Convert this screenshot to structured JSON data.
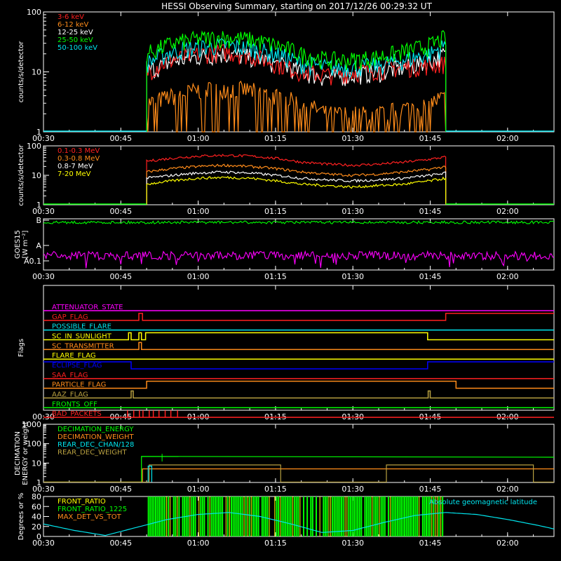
{
  "title": "HESSI Observing Summary, starting on 2017/12/26 00:29:32 UT",
  "time_ticks": [
    "00:30",
    "00:45",
    "01:00",
    "01:15",
    "01:30",
    "01:45",
    "02:00"
  ],
  "colors": {
    "red": "#ff2020",
    "orange": "#ff8c1a",
    "white": "#ffffff",
    "yellow": "#ffff00",
    "green": "#00ff00",
    "cyan": "#00e5ee",
    "magenta": "#ff00ff",
    "blue": "#0000ff",
    "olive": "#b8a040",
    "axis": "#ffffff"
  },
  "chart_data": [
    {
      "id": "low_energy_rates",
      "type": "line",
      "ylabel": "counts/s/detector",
      "yscale": "log",
      "ylim": [
        1,
        100
      ],
      "yticks": [
        "1",
        "10",
        "100"
      ],
      "xlim": [
        "00:30",
        "02:09"
      ],
      "data_window": [
        "00:50",
        "01:48"
      ],
      "series": [
        {
          "name": "3-6 keV",
          "color": "red",
          "x": [
            "00:50",
            "00:55",
            "01:00",
            "01:05",
            "01:10",
            "01:15",
            "01:20",
            "01:25",
            "01:30",
            "01:35",
            "01:40",
            "01:45",
            "01:48"
          ],
          "y": [
            10,
            16,
            20,
            22,
            19,
            14,
            10,
            9,
            10,
            11,
            12,
            13,
            14
          ]
        },
        {
          "name": "6-12 keV",
          "color": "orange",
          "x": [
            "00:50",
            "00:55",
            "01:00",
            "01:05",
            "01:10",
            "01:15",
            "01:20",
            "01:25",
            "01:30",
            "01:35",
            "01:40",
            "01:45",
            "01:48"
          ],
          "y": [
            3,
            4,
            5,
            5.5,
            5,
            4,
            3,
            2,
            2,
            2,
            2.5,
            3,
            4
          ]
        },
        {
          "name": "12-25 keV",
          "color": "white",
          "x": [
            "00:50",
            "00:55",
            "01:00",
            "01:05",
            "01:10",
            "01:15",
            "01:20",
            "01:25",
            "01:30",
            "01:35",
            "01:40",
            "01:45",
            "01:48"
          ],
          "y": [
            10,
            15,
            18,
            20,
            18,
            14,
            10,
            8,
            9,
            10,
            12,
            15,
            20
          ]
        },
        {
          "name": "25-50 keV",
          "color": "green",
          "x": [
            "00:50",
            "00:55",
            "01:00",
            "01:05",
            "01:10",
            "01:15",
            "01:20",
            "01:25",
            "01:30",
            "01:35",
            "01:40",
            "01:45",
            "01:48"
          ],
          "y": [
            20,
            30,
            36,
            38,
            35,
            28,
            20,
            16,
            16,
            18,
            22,
            28,
            38
          ]
        },
        {
          "name": "50-100 keV",
          "color": "cyan",
          "x": [
            "00:50",
            "00:55",
            "01:00",
            "01:05",
            "01:10",
            "01:15",
            "01:20",
            "01:25",
            "01:30",
            "01:35",
            "01:40",
            "01:45",
            "01:48"
          ],
          "y": [
            14,
            22,
            26,
            28,
            25,
            20,
            14,
            12,
            12,
            13,
            16,
            20,
            28
          ]
        }
      ]
    },
    {
      "id": "high_energy_rates",
      "type": "line",
      "ylabel": "counts/s/detector",
      "yscale": "log",
      "ylim": [
        1,
        100
      ],
      "yticks": [
        "1",
        "10",
        "100"
      ],
      "xlim": [
        "00:30",
        "02:09"
      ],
      "data_window": [
        "00:50",
        "01:48"
      ],
      "series": [
        {
          "name": "0.1-0.3 MeV",
          "color": "red",
          "x": [
            "00:50",
            "00:55",
            "01:00",
            "01:05",
            "01:10",
            "01:15",
            "01:20",
            "01:25",
            "01:30",
            "01:35",
            "01:40",
            "01:45",
            "01:48"
          ],
          "y": [
            30,
            38,
            45,
            48,
            45,
            38,
            28,
            24,
            22,
            24,
            28,
            35,
            42
          ]
        },
        {
          "name": "0.3-0.8 MeV",
          "color": "orange",
          "x": [
            "00:50",
            "00:55",
            "01:00",
            "01:05",
            "01:10",
            "01:15",
            "01:20",
            "01:25",
            "01:30",
            "01:35",
            "01:40",
            "01:45",
            "01:48"
          ],
          "y": [
            13,
            17,
            20,
            22,
            20,
            17,
            13,
            11,
            10,
            11,
            13,
            16,
            20
          ]
        },
        {
          "name": "0.8-7 MeV",
          "color": "white",
          "x": [
            "00:50",
            "00:55",
            "01:00",
            "01:05",
            "01:10",
            "01:15",
            "01:20",
            "01:25",
            "01:30",
            "01:35",
            "01:40",
            "01:45",
            "01:48"
          ],
          "y": [
            8,
            10,
            12,
            13,
            12,
            10,
            8,
            7,
            6.5,
            7,
            8,
            10,
            12
          ]
        },
        {
          "name": "7-20 MeV",
          "color": "yellow",
          "x": [
            "00:50",
            "00:55",
            "01:00",
            "01:05",
            "01:10",
            "01:15",
            "01:20",
            "01:25",
            "01:30",
            "01:35",
            "01:40",
            "01:45",
            "01:48"
          ],
          "y": [
            5,
            6.5,
            8,
            8.5,
            8,
            6.5,
            5,
            4.5,
            4,
            4.5,
            5,
            6.5,
            8
          ]
        }
      ]
    },
    {
      "id": "goes15",
      "type": "line",
      "ylabel": "GOES15",
      "ylabel2": "[W m⁻²]",
      "yticks": [
        "A0.1",
        "A",
        "B"
      ],
      "xlim": [
        "00:30",
        "02:09"
      ],
      "series": [
        {
          "color": "green",
          "level": 0.93
        },
        {
          "color": "magenta",
          "level": 0.28
        }
      ]
    },
    {
      "id": "flags",
      "type": "line",
      "ylabel": "Flags",
      "xlim": [
        "00:30",
        "02:09"
      ],
      "series": [
        {
          "name": "ATTENUATOR_STATE",
          "color": "magenta",
          "segments": [
            [
              "00:30",
              0,
              "02:09"
            ]
          ]
        },
        {
          "name": "GAP_FLAG",
          "color": "red",
          "segments": [
            [
              "00:30",
              0,
              "00:48.5"
            ],
            [
              "00:48.5",
              1,
              "00:49.2"
            ],
            [
              "00:49.2",
              0,
              "01:48"
            ],
            [
              "01:48",
              1,
              "02:09"
            ]
          ]
        },
        {
          "name": "POSSIBLE_FLARE",
          "color": "cyan",
          "segments": [
            [
              "00:30",
              0,
              "02:09"
            ]
          ]
        },
        {
          "name": "SC_IN_SUNLIGHT",
          "color": "yellow",
          "segments": [
            [
              "00:30",
              0,
              "00:46.5"
            ],
            [
              "00:46.5",
              1,
              "00:47"
            ],
            [
              "00:47",
              0,
              "00:48.5"
            ],
            [
              "00:48.5",
              1,
              "00:49"
            ],
            [
              "00:49",
              0,
              "00:49.8"
            ],
            [
              "00:49.8",
              1,
              "01:44.5"
            ],
            [
              "01:44.5",
              0,
              "02:09"
            ]
          ]
        },
        {
          "name": "SC_TRANSMITTER",
          "color": "orange",
          "segments": [
            [
              "00:30",
              0,
              "00:48.5"
            ],
            [
              "00:48.5",
              1,
              "00:49"
            ],
            [
              "00:49",
              0,
              "02:09"
            ]
          ]
        },
        {
          "name": "FLARE_FLAG",
          "color": "yellow",
          "segments": [
            [
              "00:30",
              0,
              "02:09"
            ]
          ]
        },
        {
          "name": "ECLIPSE_FLAG",
          "color": "blue",
          "segments": [
            [
              "00:30",
              1,
              "00:47"
            ],
            [
              "00:47",
              0,
              "01:44.5"
            ],
            [
              "01:44.5",
              1,
              "02:09"
            ]
          ]
        },
        {
          "name": "SAA_FLAG",
          "color": "red",
          "segments": [
            [
              "00:30",
              0,
              "02:09"
            ]
          ]
        },
        {
          "name": "PARTICLE_FLAG",
          "color": "orange",
          "segments": [
            [
              "00:30",
              0,
              "00:50"
            ],
            [
              "00:50",
              1,
              "01:50"
            ],
            [
              "01:50",
              0,
              "02:09"
            ]
          ]
        },
        {
          "name": "AAZ_FLAG",
          "color": "olive",
          "segments": [
            [
              "00:30",
              0,
              "00:47"
            ],
            [
              "00:47",
              1,
              "00:47.4"
            ],
            [
              "00:47.4",
              0,
              "01:44.6"
            ],
            [
              "01:44.6",
              1,
              "01:45"
            ],
            [
              "01:45",
              0,
              "02:09"
            ]
          ]
        },
        {
          "name": "FRONTS_OFF",
          "color": "green",
          "segments": [
            [
              "00:30",
              0,
              "02:09"
            ]
          ]
        },
        {
          "name": "BAD_PACKETS",
          "color": "red",
          "spikes": [
            "00:46.3",
            "00:47.5",
            "00:48.6",
            "00:49.3",
            "00:50.5",
            "00:51.3",
            "00:52.4",
            "00:53.6",
            "00:54.7",
            "00:56"
          ]
        }
      ]
    },
    {
      "id": "decimation",
      "type": "line",
      "ylabel": "DECIMATION",
      "ylabel2": "ENERGY or weight",
      "yscale": "log",
      "ylim": [
        1,
        1000
      ],
      "yticks": [
        "1",
        "10",
        "100",
        "1000"
      ],
      "xlim": [
        "00:30",
        "02:09"
      ],
      "series": [
        {
          "name": "DECIMATION_ENERGY",
          "color": "green"
        },
        {
          "name": "DECIMATION_WEIGHT",
          "color": "orange"
        },
        {
          "name": "REAR_DEC_CHAN/128",
          "color": "cyan"
        },
        {
          "name": "REAR_DEC_WEIGHT",
          "color": "olive"
        }
      ]
    },
    {
      "id": "ratios",
      "type": "line",
      "ylabel": "Degrees or %",
      "ylim": [
        0,
        80
      ],
      "yticks": [
        "0",
        "20",
        "40",
        "60",
        "80"
      ],
      "xlim": [
        "00:30",
        "02:09"
      ],
      "series": [
        {
          "name": "FRONT_RATIO",
          "color": "yellow"
        },
        {
          "name": "FRONT_RATIO_1225",
          "color": "green"
        },
        {
          "name": "MAX_DET_VS_TOT",
          "color": "orange"
        },
        {
          "name": "Absolute geomagnetic latitude",
          "color": "cyan",
          "x": [
            "00:30",
            "00:36",
            "00:42",
            "00:48",
            "00:54",
            "01:00",
            "01:06",
            "01:12",
            "01:18",
            "01:24",
            "01:30",
            "01:36",
            "01:42",
            "01:48",
            "01:54",
            "02:00",
            "02:06",
            "02:09"
          ],
          "y": [
            25,
            12,
            2,
            18,
            34,
            44,
            48,
            40,
            25,
            8,
            12,
            28,
            42,
            48,
            44,
            34,
            22,
            15
          ]
        }
      ]
    }
  ]
}
